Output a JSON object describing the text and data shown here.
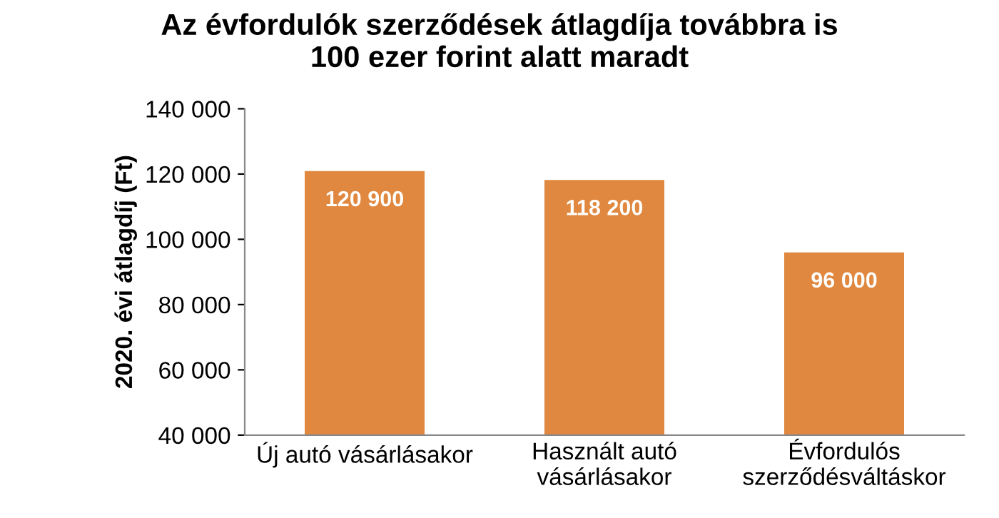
{
  "chart_data": {
    "type": "bar",
    "title": "Az évfordulók szerződések átlagdíja továbbra is\n100 ezer forint alatt maradt",
    "ylabel": "2020. évi átlagdíj (Ft)",
    "categories": [
      "Új autó vásárlásakor",
      "Használt autó\nvásárlásakor",
      "Évfordulós\nszerződésváltáskor"
    ],
    "values": [
      120900,
      118200,
      96000
    ],
    "value_labels": [
      "120 900",
      "118 200",
      "96 000"
    ],
    "color": "#e0883f",
    "ylim": [
      40000,
      140000
    ],
    "yticks": [
      {
        "value": 40000,
        "label": "40 000"
      },
      {
        "value": 60000,
        "label": "60 000"
      },
      {
        "value": 80000,
        "label": "80 000"
      },
      {
        "value": 100000,
        "label": "100 000"
      },
      {
        "value": 120000,
        "label": "120 000"
      },
      {
        "value": 140000,
        "label": "140 000"
      }
    ],
    "grid": false,
    "legend": false
  }
}
